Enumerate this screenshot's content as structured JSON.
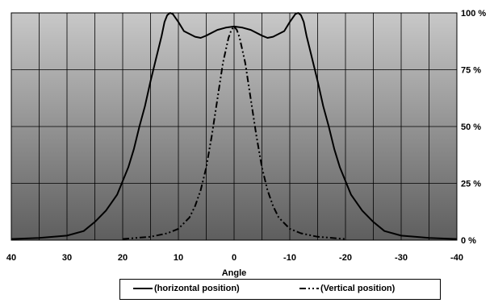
{
  "chart_data": {
    "type": "line",
    "xlabel": "Angle",
    "ylabel": "",
    "xlim": [
      40,
      -40
    ],
    "ylim": [
      0,
      100
    ],
    "x_ticks": [
      "40",
      "30",
      "20",
      "10",
      "0",
      "-10",
      "-20",
      "-30",
      "-40"
    ],
    "y_ticks": [
      "0 %",
      "25 %",
      "50 %",
      "75 %",
      "100 %"
    ],
    "grid": true,
    "legend_position": "bottom",
    "series": [
      {
        "name": "(horizontal position)",
        "style": "solid",
        "color": "#000000",
        "points": [
          [
            40,
            0.5
          ],
          [
            35,
            1
          ],
          [
            30,
            2
          ],
          [
            27,
            4
          ],
          [
            25,
            8
          ],
          [
            23,
            13
          ],
          [
            21,
            20
          ],
          [
            19,
            32
          ],
          [
            18,
            40
          ],
          [
            17,
            50
          ],
          [
            16,
            59
          ],
          [
            15,
            70
          ],
          [
            14,
            80
          ],
          [
            13,
            90
          ],
          [
            12.5,
            96
          ],
          [
            12,
            99
          ],
          [
            11.5,
            100
          ],
          [
            11,
            99.5
          ],
          [
            10,
            96
          ],
          [
            9,
            92
          ],
          [
            7,
            89.5
          ],
          [
            6,
            89
          ],
          [
            5,
            90
          ],
          [
            3,
            92.5
          ],
          [
            1.5,
            93.5
          ],
          [
            0,
            94
          ],
          [
            -1.5,
            93.5
          ],
          [
            -3,
            92.5
          ],
          [
            -5,
            90
          ],
          [
            -6,
            89
          ],
          [
            -7,
            89.5
          ],
          [
            -9,
            92
          ],
          [
            -10,
            96
          ],
          [
            -11,
            99.5
          ],
          [
            -11.5,
            100
          ],
          [
            -12,
            99
          ],
          [
            -12.5,
            96
          ],
          [
            -13,
            90
          ],
          [
            -14,
            80
          ],
          [
            -15,
            70
          ],
          [
            -16,
            59
          ],
          [
            -17,
            50
          ],
          [
            -18,
            40
          ],
          [
            -19,
            32
          ],
          [
            -21,
            20
          ],
          [
            -23,
            13
          ],
          [
            -25,
            8
          ],
          [
            -27,
            4
          ],
          [
            -30,
            2
          ],
          [
            -35,
            1
          ],
          [
            -40,
            0.5
          ]
        ]
      },
      {
        "name": "(Vertical position)",
        "style": "dash-dot-dot",
        "color": "#000000",
        "points": [
          [
            20,
            0.5
          ],
          [
            15,
            1.5
          ],
          [
            12,
            3
          ],
          [
            10,
            5
          ],
          [
            8,
            10
          ],
          [
            7,
            15
          ],
          [
            6,
            22
          ],
          [
            5,
            32
          ],
          [
            4,
            46
          ],
          [
            3,
            62
          ],
          [
            2,
            78
          ],
          [
            1,
            89
          ],
          [
            0.5,
            92.5
          ],
          [
            0,
            94
          ],
          [
            -0.5,
            92.5
          ],
          [
            -1,
            89
          ],
          [
            -2,
            78
          ],
          [
            -3,
            62
          ],
          [
            -4,
            46
          ],
          [
            -5,
            32
          ],
          [
            -6,
            22
          ],
          [
            -7,
            15
          ],
          [
            -8,
            10
          ],
          [
            -10,
            5
          ],
          [
            -12,
            3
          ],
          [
            -15,
            1.5
          ],
          [
            -20,
            0.5
          ]
        ]
      }
    ]
  }
}
